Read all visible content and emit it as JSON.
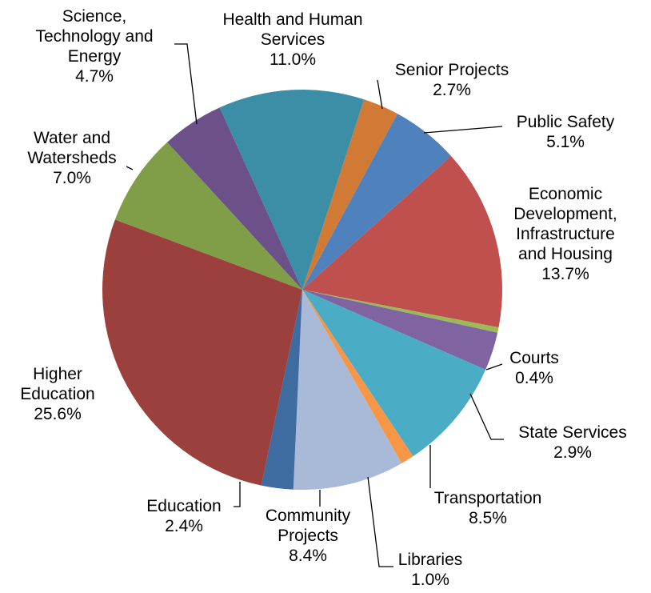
{
  "chart_data": {
    "type": "pie",
    "categories": [
      "Senior Projects",
      "Public Safety",
      "Economic Development, Infrastructure and Housing",
      "Courts",
      "State Services",
      "Transportation",
      "Libraries",
      "Community Projects",
      "Education",
      "Higher Education",
      "Water and Watersheds",
      "Science, Technology and Energy",
      "Health and Human Services"
    ],
    "values": [
      2.7,
      5.1,
      13.7,
      0.4,
      2.9,
      8.5,
      1.0,
      8.4,
      2.4,
      25.6,
      7.0,
      4.7,
      11.0
    ],
    "value_labels": [
      "2.7%",
      "5.1%",
      "13.7%",
      "0.4%",
      "2.9%",
      "8.5%",
      "1.0%",
      "8.4%",
      "2.4%",
      "25.6%",
      "7.0%",
      "4.7%",
      "11.0%"
    ],
    "colors": [
      "#d07a35",
      "#4f81bd",
      "#c0504d",
      "#9bbb59",
      "#8064a2",
      "#4bacc6",
      "#f79646",
      "#a9b9d8",
      "#3e6ba0",
      "#9c403d",
      "#7f9e47",
      "#6b5089",
      "#3b8ea5"
    ]
  }
}
